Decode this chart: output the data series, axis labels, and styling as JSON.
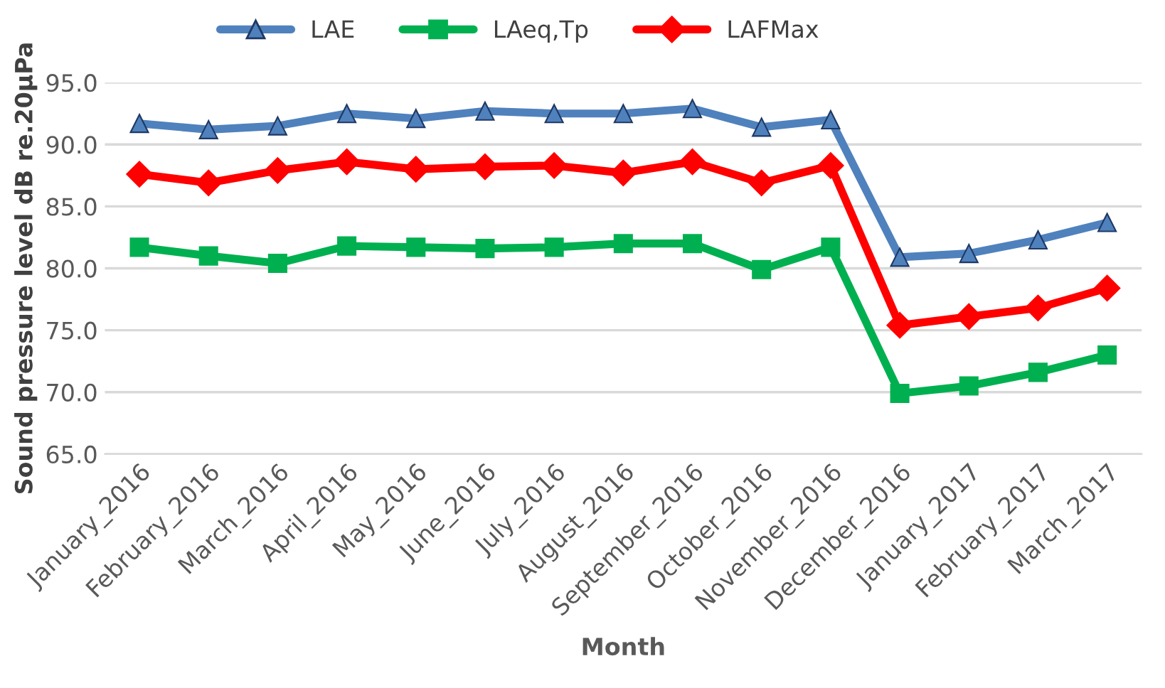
{
  "chart_data": {
    "type": "line",
    "xlabel": "Month",
    "ylabel": "Sound pressure level dB re.20µPa",
    "categories": [
      "January_2016",
      "February_2016",
      "March_2016",
      "April_2016",
      "May_2016",
      "June_2016",
      "July_2016",
      "August_2016",
      "September_2016",
      "October_2016",
      "November_2016",
      "December_2016",
      "January_2017",
      "February_2017",
      "March_2017"
    ],
    "series": [
      {
        "name": "LAE",
        "color": "#4f81bd",
        "marker": "triangle",
        "values": [
          91.7,
          91.2,
          91.5,
          92.5,
          92.1,
          92.7,
          92.5,
          92.5,
          92.9,
          91.4,
          92.0,
          80.9,
          81.2,
          82.3,
          83.7
        ]
      },
      {
        "name": "LAeq,Tp",
        "color": "#00b050",
        "marker": "square",
        "values": [
          81.7,
          81.0,
          80.4,
          81.8,
          81.7,
          81.6,
          81.7,
          82.0,
          82.0,
          79.9,
          81.7,
          69.9,
          70.5,
          71.6,
          73.0
        ]
      },
      {
        "name": "LAFMax",
        "color": "#ff0000",
        "marker": "diamond",
        "values": [
          87.6,
          86.9,
          87.9,
          88.6,
          88.0,
          88.2,
          88.3,
          87.7,
          88.6,
          86.9,
          88.3,
          75.4,
          76.1,
          76.8,
          78.4
        ]
      }
    ],
    "ylim": [
      65,
      95
    ],
    "yticks": [
      {
        "value": 65,
        "label": "65.0"
      },
      {
        "value": 70,
        "label": "70.0"
      },
      {
        "value": 75,
        "label": "75.0"
      },
      {
        "value": 80,
        "label": "80.0"
      },
      {
        "value": 85,
        "label": "85.0"
      },
      {
        "value": 90,
        "label": "90.0"
      },
      {
        "value": 95,
        "label": "95.0"
      }
    ],
    "grid": "y",
    "legend": "top",
    "line_style": "solid"
  }
}
